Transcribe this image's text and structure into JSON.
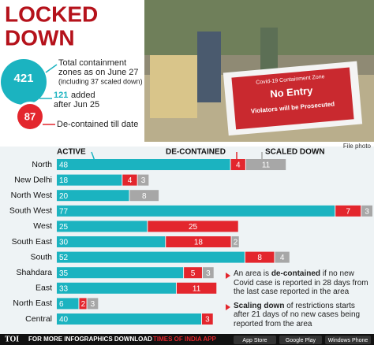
{
  "header": {
    "title_lines": [
      "LOCKED",
      "DOWN"
    ]
  },
  "summary": {
    "total": "421",
    "total_lines": [
      "Total containment",
      "zones as on June 27",
      "(including 37 scaled down)"
    ],
    "added": "121",
    "added_lines": [
      "added",
      "after Jun 25"
    ],
    "decontained": "87",
    "decontained_text": "De-contained till date"
  },
  "photo": {
    "sign_lines": [
      "Covid-19 Containment Zone",
      "No Entry",
      "Violators will be Prosecuted"
    ],
    "caption": "File photo"
  },
  "chart_data": {
    "type": "stacked-bar-horizontal",
    "categories": [
      "North",
      "New Delhi",
      "North West",
      "South West",
      "West",
      "South East",
      "South",
      "Shahdara",
      "East",
      "North East",
      "Central"
    ],
    "series": [
      {
        "name": "ACTIVE",
        "color": "#1bb3c0",
        "values": [
          48,
          18,
          20,
          77,
          25,
          30,
          52,
          35,
          33,
          6,
          40
        ]
      },
      {
        "name": "DE-CONTAINED",
        "color": "#e3262d",
        "values": [
          4,
          4,
          null,
          7,
          25,
          18,
          8,
          5,
          11,
          2,
          3
        ]
      },
      {
        "name": "SCALED DOWN",
        "color": "#a7a7a7",
        "values": [
          11,
          3,
          8,
          3,
          null,
          2,
          4,
          3,
          null,
          3,
          null
        ]
      }
    ]
  },
  "notes": [
    {
      "parts": [
        "An area is ",
        "de-contained",
        " if no new Covid case is reported in 28 days from the last case reported in the area"
      ]
    },
    {
      "parts": [
        "",
        "Scaling down",
        " of restrictions starts after 21 days of no new cases being reported from the area"
      ]
    }
  ],
  "footer": {
    "logo": "TOI",
    "text": "FOR MORE INFOGRAPHICS DOWNLOAD",
    "app": "TIMES OF INDIA APP",
    "badges": [
      "App Store",
      "Google Play",
      "Windows Phone"
    ]
  }
}
